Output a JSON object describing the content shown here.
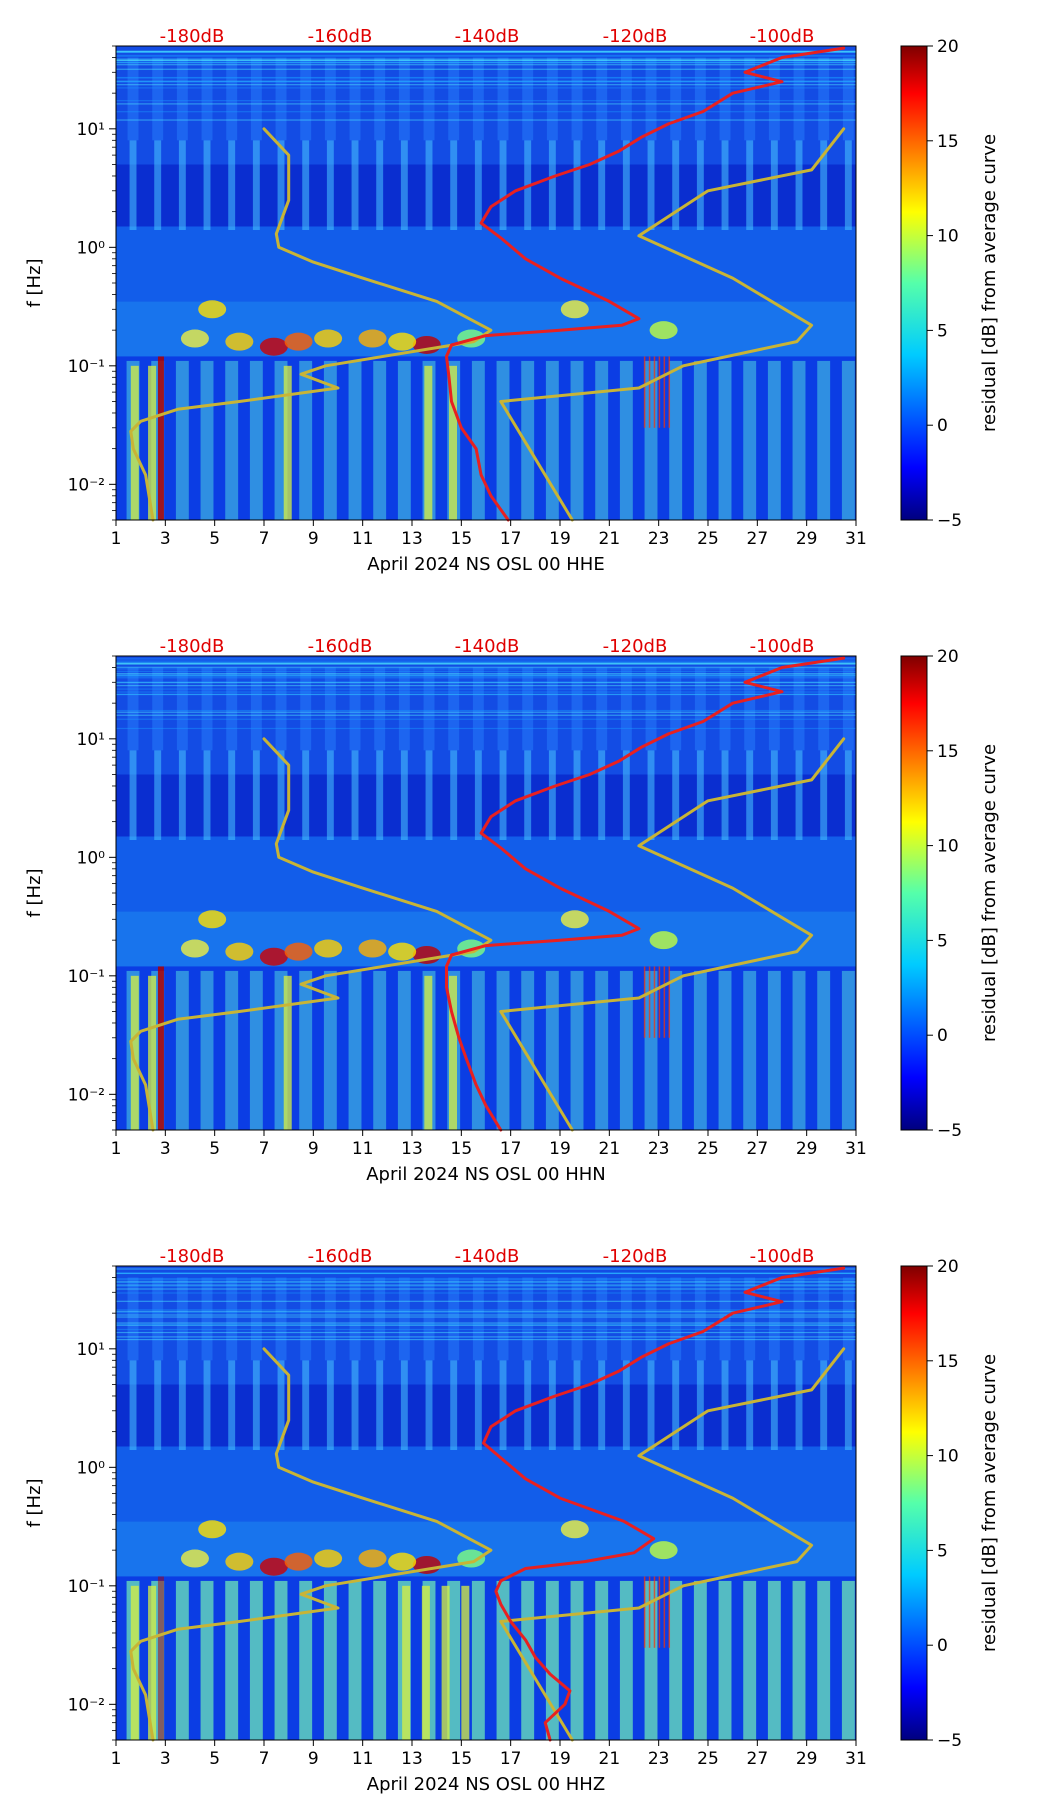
{
  "chart_data": [
    {
      "type": "heatmap",
      "title": "",
      "xlabel": "April 2024 NS OSL 00 HHE",
      "ylabel": "f [Hz]",
      "xlim": [
        1,
        31
      ],
      "ylim": [
        0.005,
        50
      ],
      "yscale": "log",
      "x_ticks": [
        1,
        3,
        5,
        7,
        9,
        11,
        13,
        15,
        17,
        19,
        21,
        23,
        25,
        27,
        29,
        31
      ],
      "y_ticks": [
        {
          "value": 0.01,
          "label": "10⁻²"
        },
        {
          "value": 0.1,
          "label": "10⁻¹"
        },
        {
          "value": 1,
          "label": "10⁰"
        },
        {
          "value": 10,
          "label": "10¹"
        }
      ],
      "db_axis_labels": [
        "-180dB",
        "-160dB",
        "-140dB",
        "-120dB",
        "-100dB"
      ],
      "colorbar": {
        "label": "residual [dB] from average curve",
        "min": -5,
        "max": 20,
        "ticks": [
          -5,
          0,
          5,
          10,
          15,
          20
        ],
        "colormap": "jet"
      },
      "series": [
        {
          "name": "noise model",
          "color": "#c8b436",
          "x": [
            2.5,
            2.2,
            1.7,
            1.6,
            2.0,
            3.5,
            6.0,
            10.0,
            8.5,
            9.5,
            15.5,
            16.2,
            14.0,
            11.0,
            9.0,
            7.6,
            7.5,
            8.0,
            8.0,
            7.0
          ],
          "y": [
            0.005,
            0.012,
            0.02,
            0.028,
            0.034,
            0.043,
            0.05,
            0.065,
            0.085,
            0.1,
            0.16,
            0.2,
            0.35,
            0.55,
            0.75,
            1.0,
            1.3,
            2.5,
            6.0,
            10.0
          ]
        },
        {
          "name": "noise model",
          "color": "#c8b436",
          "x": [
            19.5,
            16.6,
            22.2,
            24.0,
            28.6,
            29.2,
            26.0,
            22.2,
            25.0,
            29.2,
            30.5
          ],
          "y": [
            0.005,
            0.05,
            0.065,
            0.1,
            0.16,
            0.22,
            0.55,
            1.25,
            3.0,
            4.5,
            10.0
          ]
        },
        {
          "name": "average PSD",
          "color": "#e82020",
          "x": [
            16.9,
            16.2,
            15.8,
            15.6,
            15.0,
            14.6,
            14.5,
            14.4,
            14.6,
            16.0,
            19.0,
            21.5,
            22.2,
            21.0,
            19.0,
            17.6,
            16.6,
            15.8,
            16.2,
            17.2,
            18.8,
            20.2,
            21.4,
            22.3,
            23.4,
            24.8,
            26.0,
            28.0,
            26.5,
            28.0,
            30.5
          ],
          "y": [
            0.005,
            0.008,
            0.012,
            0.02,
            0.03,
            0.05,
            0.08,
            0.12,
            0.15,
            0.18,
            0.2,
            0.22,
            0.25,
            0.35,
            0.55,
            0.8,
            1.2,
            1.6,
            2.2,
            3.0,
            4.0,
            5.0,
            6.5,
            8.5,
            11.0,
            14.0,
            20.0,
            25.0,
            30.0,
            40.0,
            48.0
          ]
        }
      ]
    },
    {
      "type": "heatmap",
      "title": "",
      "xlabel": "April 2024 NS OSL 00 HHN",
      "ylabel": "f [Hz]",
      "xlim": [
        1,
        31
      ],
      "ylim": [
        0.005,
        50
      ],
      "yscale": "log",
      "x_ticks": [
        1,
        3,
        5,
        7,
        9,
        11,
        13,
        15,
        17,
        19,
        21,
        23,
        25,
        27,
        29,
        31
      ],
      "y_ticks": [
        {
          "value": 0.01,
          "label": "10⁻²"
        },
        {
          "value": 0.1,
          "label": "10⁻¹"
        },
        {
          "value": 1,
          "label": "10⁰"
        },
        {
          "value": 10,
          "label": "10¹"
        }
      ],
      "db_axis_labels": [
        "-180dB",
        "-160dB",
        "-140dB",
        "-120dB",
        "-100dB"
      ],
      "colorbar": {
        "label": "residual [dB] from average curve",
        "min": -5,
        "max": 20,
        "ticks": [
          -5,
          0,
          5,
          10,
          15,
          20
        ],
        "colormap": "jet"
      },
      "series": [
        {
          "name": "noise model",
          "color": "#c8b436",
          "x": [
            2.5,
            2.2,
            1.7,
            1.6,
            2.0,
            3.5,
            6.0,
            10.0,
            8.5,
            9.5,
            15.5,
            16.2,
            14.0,
            11.0,
            9.0,
            7.6,
            7.5,
            8.0,
            8.0,
            7.0
          ],
          "y": [
            0.005,
            0.012,
            0.02,
            0.028,
            0.034,
            0.043,
            0.05,
            0.065,
            0.085,
            0.1,
            0.16,
            0.2,
            0.35,
            0.55,
            0.75,
            1.0,
            1.3,
            2.5,
            6.0,
            10.0
          ]
        },
        {
          "name": "noise model",
          "color": "#c8b436",
          "x": [
            19.5,
            16.6,
            22.2,
            24.0,
            28.6,
            29.2,
            26.0,
            22.2,
            25.0,
            29.2,
            30.5
          ],
          "y": [
            0.005,
            0.05,
            0.065,
            0.1,
            0.16,
            0.22,
            0.55,
            1.25,
            3.0,
            4.5,
            10.0
          ]
        },
        {
          "name": "average PSD",
          "color": "#e82020",
          "x": [
            16.6,
            16.0,
            15.6,
            15.2,
            14.9,
            14.6,
            14.4,
            14.4,
            14.6,
            16.0,
            19.0,
            21.5,
            22.2,
            21.0,
            19.0,
            17.6,
            16.6,
            15.8,
            16.2,
            17.2,
            18.8,
            20.2,
            21.4,
            22.3,
            23.4,
            24.8,
            26.0,
            28.0,
            26.5,
            28.0,
            30.5
          ],
          "y": [
            0.005,
            0.008,
            0.012,
            0.02,
            0.03,
            0.05,
            0.08,
            0.12,
            0.15,
            0.18,
            0.2,
            0.22,
            0.25,
            0.35,
            0.55,
            0.8,
            1.2,
            1.6,
            2.2,
            3.0,
            4.0,
            5.0,
            6.5,
            8.5,
            11.0,
            14.0,
            20.0,
            25.0,
            30.0,
            40.0,
            48.0
          ]
        }
      ]
    },
    {
      "type": "heatmap",
      "title": "",
      "xlabel": "April 2024 NS OSL 00 HHZ",
      "ylabel": "f [Hz]",
      "xlim": [
        1,
        31
      ],
      "ylim": [
        0.005,
        50
      ],
      "yscale": "log",
      "x_ticks": [
        1,
        3,
        5,
        7,
        9,
        11,
        13,
        15,
        17,
        19,
        21,
        23,
        25,
        27,
        29,
        31
      ],
      "y_ticks": [
        {
          "value": 0.01,
          "label": "10⁻²"
        },
        {
          "value": 0.1,
          "label": "10⁻¹"
        },
        {
          "value": 1,
          "label": "10⁰"
        },
        {
          "value": 10,
          "label": "10¹"
        }
      ],
      "db_axis_labels": [
        "-180dB",
        "-160dB",
        "-140dB",
        "-120dB",
        "-100dB"
      ],
      "colorbar": {
        "label": "residual [dB] from average curve",
        "min": -5,
        "max": 20,
        "ticks": [
          -5,
          0,
          5,
          10,
          15,
          20
        ],
        "colormap": "jet"
      },
      "series": [
        {
          "name": "noise model",
          "color": "#c8b436",
          "x": [
            2.5,
            2.2,
            1.7,
            1.6,
            2.0,
            3.5,
            6.0,
            10.0,
            8.5,
            9.5,
            15.5,
            16.2,
            14.0,
            11.0,
            9.0,
            7.6,
            7.5,
            8.0,
            8.0,
            7.0
          ],
          "y": [
            0.005,
            0.012,
            0.02,
            0.028,
            0.034,
            0.043,
            0.05,
            0.065,
            0.085,
            0.1,
            0.16,
            0.2,
            0.35,
            0.55,
            0.75,
            1.0,
            1.3,
            2.5,
            6.0,
            10.0
          ]
        },
        {
          "name": "noise model",
          "color": "#c8b436",
          "x": [
            19.5,
            16.6,
            22.2,
            24.0,
            28.6,
            29.2,
            26.0,
            22.2,
            25.0,
            29.2,
            30.5
          ],
          "y": [
            0.005,
            0.05,
            0.065,
            0.1,
            0.16,
            0.22,
            0.55,
            1.25,
            3.0,
            4.5,
            10.0
          ]
        },
        {
          "name": "average PSD",
          "color": "#e82020",
          "x": [
            18.6,
            18.4,
            19.2,
            19.4,
            18.6,
            18.0,
            17.6,
            17.0,
            16.6,
            16.4,
            16.6,
            17.6,
            20.0,
            22.0,
            22.8,
            21.6,
            19.0,
            17.6,
            16.6,
            15.9,
            16.2,
            17.2,
            18.8,
            20.2,
            21.4,
            22.3,
            23.4,
            24.8,
            26.0,
            28.0,
            26.5,
            28.0,
            30.5
          ],
          "y": [
            0.005,
            0.007,
            0.01,
            0.013,
            0.018,
            0.025,
            0.035,
            0.05,
            0.07,
            0.09,
            0.11,
            0.14,
            0.16,
            0.19,
            0.25,
            0.35,
            0.55,
            0.8,
            1.2,
            1.6,
            2.2,
            3.0,
            4.0,
            5.0,
            6.5,
            8.5,
            11.0,
            14.0,
            20.0,
            25.0,
            30.0,
            40.0,
            48.0
          ]
        }
      ]
    }
  ]
}
